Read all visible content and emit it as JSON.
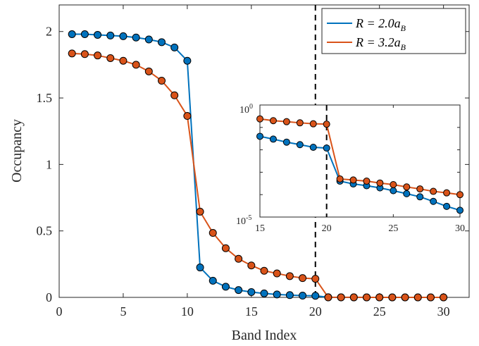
{
  "chart_data": [
    {
      "type": "line",
      "xlabel": "Band Index",
      "ylabel": "Occupancy",
      "xlim": [
        0,
        32
      ],
      "ylim": [
        0,
        2.2
      ],
      "xticks": [
        0,
        5,
        10,
        15,
        20,
        25,
        30
      ],
      "yticks": [
        0,
        0.5,
        1,
        1.5,
        2
      ],
      "ytick_labels": [
        "0",
        "0.5",
        "1",
        "1.5",
        "2"
      ],
      "vline_x": 20,
      "legend_position": "top-right",
      "legend_labels": [
        "R = 2.0a",
        "R = 3.2a"
      ],
      "legend_subscript": "B",
      "x": [
        1,
        2,
        3,
        4,
        5,
        6,
        7,
        8,
        9,
        10,
        11,
        12,
        13,
        14,
        15,
        16,
        17,
        18,
        19,
        20,
        21,
        22,
        23,
        24,
        25,
        26,
        27,
        28,
        29,
        30
      ],
      "series": [
        {
          "color": "#0072BD",
          "values": [
            1.98,
            1.98,
            1.975,
            1.97,
            1.965,
            1.955,
            1.94,
            1.92,
            1.88,
            1.78,
            0.225,
            0.125,
            0.08,
            0.055,
            0.04,
            0.03,
            0.022,
            0.017,
            0.013,
            0.012,
            0.0004,
            0.0003,
            0.00025,
            0.0002,
            0.00015,
            0.00011,
            8e-05,
            5e-05,
            3e-05,
            2e-05
          ]
        },
        {
          "color": "#D95319",
          "values": [
            1.835,
            1.83,
            1.82,
            1.8,
            1.78,
            1.75,
            1.7,
            1.63,
            1.52,
            1.365,
            0.645,
            0.485,
            0.37,
            0.29,
            0.24,
            0.2,
            0.18,
            0.16,
            0.145,
            0.14,
            0.0005,
            0.00045,
            0.0004,
            0.00033,
            0.00028,
            0.00022,
            0.00018,
            0.00014,
            0.00012,
            0.0001
          ]
        }
      ]
    },
    {
      "type": "line",
      "log_y": true,
      "xlim": [
        15,
        30
      ],
      "ylim": [
        1e-05,
        1
      ],
      "xticks": [
        15,
        20,
        25,
        30
      ],
      "yticks": [
        1e-05,
        1
      ],
      "ytick_base": "10",
      "ytick_exponents": [
        "-5",
        "0"
      ],
      "vline_x": 20,
      "x": [
        15,
        16,
        17,
        18,
        19,
        20,
        21,
        22,
        23,
        24,
        25,
        26,
        27,
        28,
        29,
        30
      ],
      "series": [
        {
          "color": "#0072BD",
          "values": [
            0.04,
            0.03,
            0.022,
            0.017,
            0.013,
            0.012,
            0.0004,
            0.0003,
            0.00025,
            0.0002,
            0.00015,
            0.00011,
            8e-05,
            5e-05,
            3e-05,
            2e-05
          ]
        },
        {
          "color": "#D95319",
          "values": [
            0.24,
            0.2,
            0.18,
            0.16,
            0.145,
            0.14,
            0.0005,
            0.00045,
            0.0004,
            0.00033,
            0.00028,
            0.00022,
            0.00018,
            0.00014,
            0.00012,
            0.0001
          ]
        }
      ]
    }
  ]
}
